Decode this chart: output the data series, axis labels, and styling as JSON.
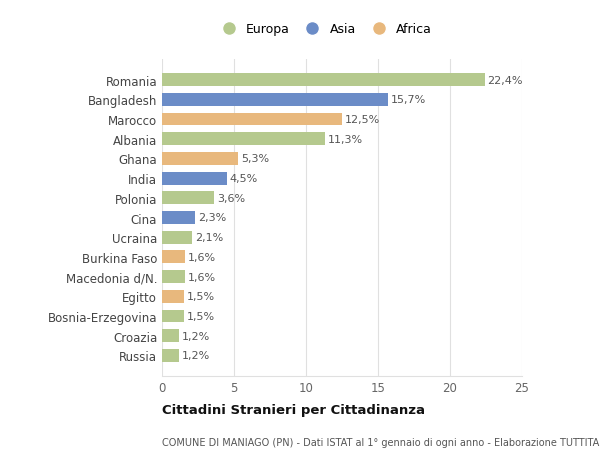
{
  "categories": [
    "Russia",
    "Croazia",
    "Bosnia-Erzegovina",
    "Egitto",
    "Macedonia d/N.",
    "Burkina Faso",
    "Ucraina",
    "Cina",
    "Polonia",
    "India",
    "Ghana",
    "Albania",
    "Marocco",
    "Bangladesh",
    "Romania"
  ],
  "values": [
    1.2,
    1.2,
    1.5,
    1.5,
    1.6,
    1.6,
    2.1,
    2.3,
    3.6,
    4.5,
    5.3,
    11.3,
    12.5,
    15.7,
    22.4
  ],
  "labels": [
    "1,2%",
    "1,2%",
    "1,5%",
    "1,5%",
    "1,6%",
    "1,6%",
    "2,1%",
    "2,3%",
    "3,6%",
    "4,5%",
    "5,3%",
    "11,3%",
    "12,5%",
    "15,7%",
    "22,4%"
  ],
  "continents": [
    "Europa",
    "Europa",
    "Europa",
    "Africa",
    "Europa",
    "Africa",
    "Europa",
    "Asia",
    "Europa",
    "Asia",
    "Africa",
    "Europa",
    "Africa",
    "Asia",
    "Europa"
  ],
  "colors": {
    "Europa": "#b5c98e",
    "Asia": "#6b8cc7",
    "Africa": "#e8b87d"
  },
  "legend_labels": [
    "Europa",
    "Asia",
    "Africa"
  ],
  "title": "Cittadini Stranieri per Cittadinanza",
  "subtitle": "COMUNE DI MANIAGO (PN) - Dati ISTAT al 1° gennaio di ogni anno - Elaborazione TUTTITALIA.IT",
  "xlim": [
    0,
    25
  ],
  "xticks": [
    0,
    5,
    10,
    15,
    20,
    25
  ],
  "background_color": "#ffffff",
  "grid_color": "#e0e0e0",
  "bar_height": 0.65
}
